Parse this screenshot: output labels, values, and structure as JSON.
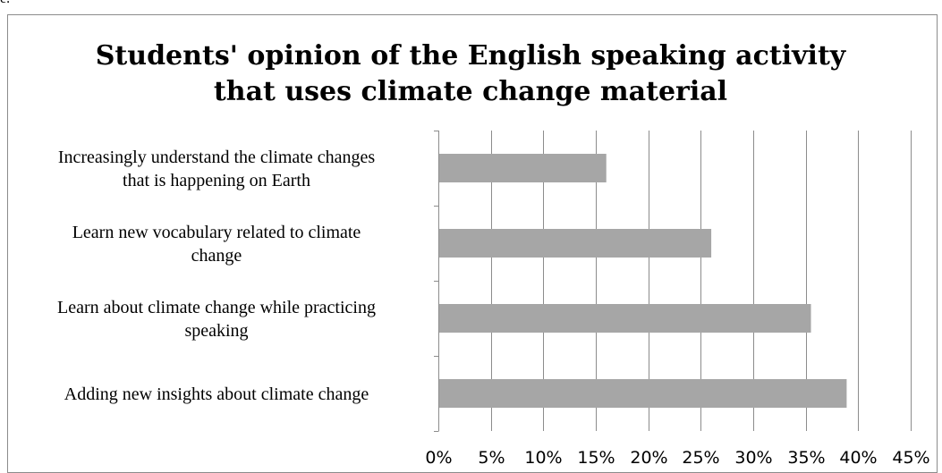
{
  "corner_text": "e.",
  "chart_data": {
    "type": "bar",
    "orientation": "horizontal",
    "title_lines": [
      "Students' opinion of the English speaking activity",
      "that uses climate change material"
    ],
    "categories": [
      [
        "Increasingly understand the climate changes",
        "that is happening on Earth"
      ],
      [
        "Learn new vocabulary related to climate",
        "change"
      ],
      [
        "Learn about climate change while practicing",
        "speaking"
      ],
      [
        "Adding new insights about climate change"
      ]
    ],
    "values": [
      16,
      26,
      35.5,
      38.9
    ],
    "xticks": [
      "0%",
      "5%",
      "10%",
      "15%",
      "20%",
      "25%",
      "30%",
      "35%",
      "40%",
      "45%"
    ],
    "xlim": [
      0,
      45
    ],
    "grid": true,
    "legend": false,
    "colors": {
      "bar": "#a6a6a6",
      "grid": "#8c8c8c",
      "axis": "#8c8c8c"
    }
  }
}
